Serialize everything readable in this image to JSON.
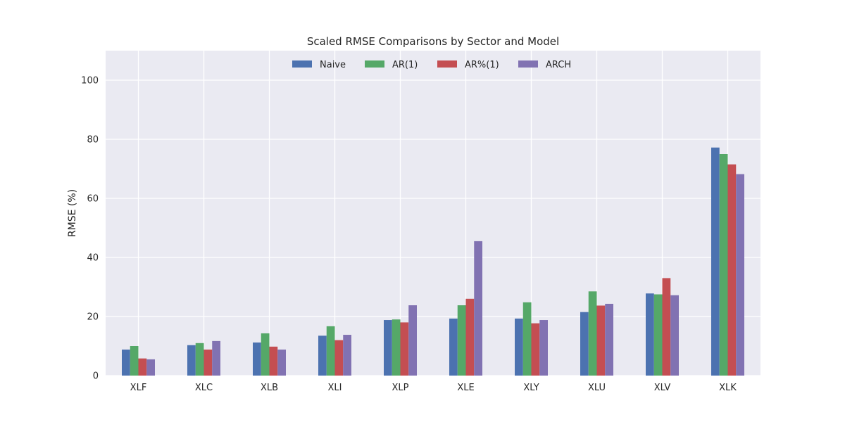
{
  "chart_data": {
    "type": "bar",
    "title": "Scaled RMSE Comparisons by Sector and Model",
    "xlabel": "",
    "ylabel": "RMSE (%)",
    "ylim": [
      0,
      110
    ],
    "yticks": [
      0,
      20,
      40,
      60,
      80,
      100
    ],
    "grid": true,
    "legend_position": "top-center",
    "categories": [
      "XLF",
      "XLC",
      "XLB",
      "XLI",
      "XLP",
      "XLE",
      "XLY",
      "XLU",
      "XLV",
      "XLK"
    ],
    "series": [
      {
        "name": "Naive",
        "color": "#4c72b0",
        "values": [
          8.8,
          10.3,
          11.2,
          13.5,
          18.8,
          19.3,
          19.3,
          21.5,
          27.8,
          77.2
        ]
      },
      {
        "name": "AR(1)",
        "color": "#55a868",
        "values": [
          10.0,
          11.0,
          14.3,
          16.7,
          19.0,
          23.8,
          24.8,
          28.5,
          27.5,
          75.0
        ]
      },
      {
        "name": "AR%(1)",
        "color": "#c44e52",
        "values": [
          5.8,
          8.8,
          9.8,
          12.0,
          18.0,
          26.0,
          17.7,
          23.7,
          33.0,
          71.5
        ]
      },
      {
        "name": "ARCH",
        "color": "#8172b2",
        "values": [
          5.5,
          11.7,
          8.8,
          13.8,
          23.8,
          45.5,
          18.8,
          24.3,
          27.2,
          68.2
        ]
      }
    ]
  }
}
